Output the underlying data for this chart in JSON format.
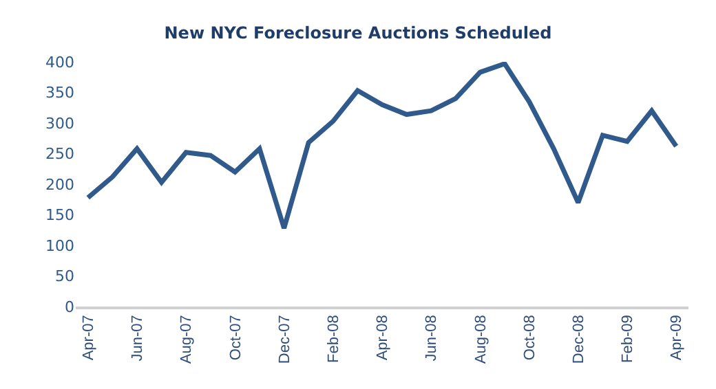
{
  "chart_data": {
    "type": "line",
    "title": "New NYC Foreclosure Auctions Scheduled",
    "categories": [
      "Apr-07",
      null,
      "Jun-07",
      null,
      "Aug-07",
      null,
      "Oct-07",
      null,
      "Dec-07",
      null,
      "Feb-08",
      null,
      "Apr-08",
      null,
      "Jun-08",
      null,
      "Aug-08",
      null,
      "Oct-08",
      null,
      "Dec-08",
      null,
      "Feb-09",
      null,
      "Apr-09"
    ],
    "series": [
      {
        "color": "#30598c",
        "values": [
          178,
          212,
          258,
          203,
          252,
          247,
          220,
          258,
          128,
          268,
          303,
          353,
          330,
          314,
          320,
          340,
          383,
          397,
          335,
          258,
          170,
          280,
          270,
          320,
          262
        ]
      }
    ],
    "ylim": [
      0,
      400
    ],
    "yticks": [
      0,
      50,
      100,
      150,
      200,
      250,
      300,
      350,
      400
    ],
    "marker": "none",
    "line_style": "solid"
  }
}
